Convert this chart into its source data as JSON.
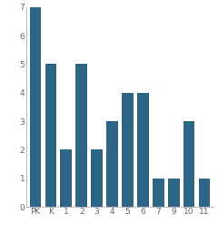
{
  "categories": [
    "PK",
    "K",
    "1",
    "2",
    "3",
    "4",
    "5",
    "6",
    "7",
    "9",
    "10",
    "11"
  ],
  "values": [
    7,
    5,
    2,
    5,
    2,
    3,
    4,
    4,
    1,
    1,
    3,
    1
  ],
  "bar_color": "#2e6485",
  "ylim": [
    0,
    7
  ],
  "yticks": [
    0,
    1,
    2,
    3,
    4,
    5,
    6,
    7
  ],
  "background_color": "#ffffff",
  "tick_fontsize": 6.5,
  "spine_color": "#bbbbbb"
}
